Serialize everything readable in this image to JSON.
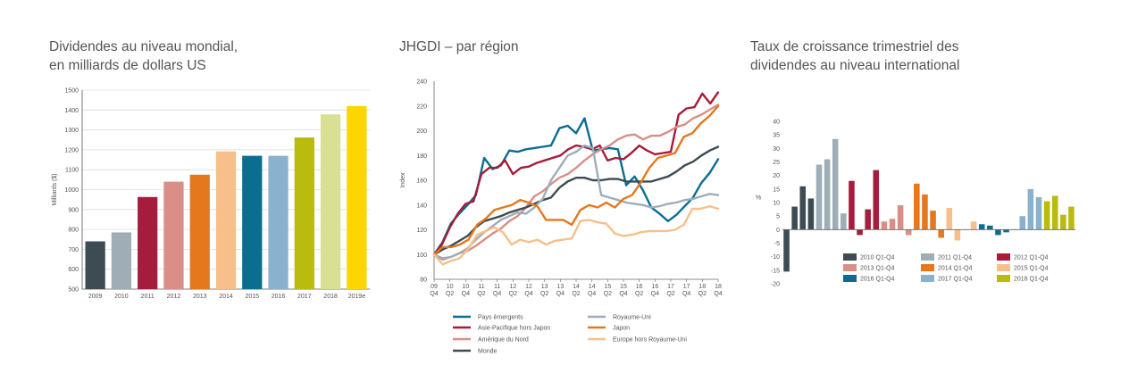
{
  "chart_data": [
    {
      "type": "bar",
      "title_line1": "Dividendes au niveau mondial,",
      "title_line2": "en milliards de dollars US",
      "ylabel": "Milliards ($)",
      "ylim": [
        500,
        1500
      ],
      "yticks": [
        500,
        600,
        700,
        800,
        900,
        1000,
        1100,
        1200,
        1300,
        1400,
        1500
      ],
      "categories": [
        "2009",
        "2010",
        "2011",
        "2012",
        "2013",
        "2014",
        "2015",
        "2016",
        "2017",
        "2018",
        "2019e"
      ],
      "values": [
        740,
        785,
        963,
        1040,
        1075,
        1192,
        1170,
        1170,
        1262,
        1378,
        1420
      ],
      "colors": [
        "#3d4b52",
        "#9fadb6",
        "#a61c3c",
        "#d98e86",
        "#e5781d",
        "#f7bf8a",
        "#0a6e91",
        "#8ab2cf",
        "#b9bb0f",
        "#d9df93",
        "#fdd500"
      ],
      "grid": true
    },
    {
      "type": "line",
      "title": "JHGDI – par région",
      "ylabel": "Index",
      "ylim": [
        80,
        240
      ],
      "yticks": [
        80,
        100,
        120,
        140,
        160,
        180,
        200,
        220,
        240
      ],
      "x_labels_top": [
        "09",
        "10",
        "10",
        "11",
        "11",
        "12",
        "12",
        "13",
        "13",
        "14",
        "14",
        "15",
        "15",
        "16",
        "16",
        "17",
        "17",
        "18",
        "18"
      ],
      "x_labels_bottom": [
        "Q4",
        "Q2",
        "Q4",
        "Q2",
        "Q4",
        "Q2",
        "Q4",
        "Q2",
        "Q4",
        "Q2",
        "Q4",
        "Q2",
        "Q4",
        "Q2",
        "Q4",
        "Q2",
        "Q4",
        "Q2",
        "Q4"
      ],
      "grid": false,
      "legend_position": "bottom",
      "series": [
        {
          "name": "Pays émergents",
          "color": "#0a6e91",
          "values": [
            100,
            110,
            125,
            133,
            140,
            148,
            178,
            169,
            172,
            184,
            183,
            185,
            186,
            187,
            188,
            202,
            204,
            198,
            210,
            184,
            185,
            186,
            185,
            156,
            163,
            152,
            138,
            133,
            127,
            132,
            139,
            146,
            158,
            166,
            177
          ]
        },
        {
          "name": "Asie-Pacifique hors Japon",
          "color": "#a61c3c",
          "values": [
            100,
            108,
            122,
            133,
            141,
            143,
            165,
            170,
            170,
            176,
            165,
            170,
            171,
            174,
            176,
            178,
            180,
            185,
            188,
            187,
            185,
            188,
            176,
            178,
            177,
            182,
            188,
            184,
            181,
            182,
            183,
            213,
            218,
            219,
            230,
            222,
            231
          ]
        },
        {
          "name": "Amérique du Nord",
          "color": "#d98e86",
          "values": [
            100,
            96,
            98,
            101,
            103,
            107,
            112,
            117,
            121,
            127,
            131,
            138,
            147,
            151,
            157,
            162,
            165,
            170,
            176,
            181,
            185,
            188,
            193,
            196,
            197,
            193,
            196,
            196,
            199,
            203,
            205,
            210,
            213,
            217,
            221
          ]
        },
        {
          "name": "Monde",
          "color": "#3d4b52",
          "values": [
            100,
            104,
            107,
            111,
            115,
            122,
            127,
            129,
            131,
            134,
            136,
            138,
            141,
            144,
            146,
            154,
            159,
            162,
            162,
            160,
            160,
            161,
            161,
            159,
            159,
            159,
            159,
            161,
            163,
            167,
            172,
            175,
            180,
            184,
            187
          ]
        },
        {
          "name": "Royaume-Uni",
          "color": "#9fadb6",
          "values": [
            100,
            97,
            98,
            101,
            105,
            112,
            118,
            123,
            128,
            131,
            134,
            133,
            138,
            145,
            160,
            170,
            180,
            183,
            188,
            186,
            148,
            146,
            144,
            142,
            141,
            140,
            138,
            139,
            141,
            142,
            144,
            145,
            147,
            149,
            148
          ]
        },
        {
          "name": "Japon",
          "color": "#e5781d",
          "values": [
            100,
            106,
            106,
            108,
            112,
            124,
            129,
            136,
            138,
            140,
            144,
            142,
            139,
            128,
            128,
            128,
            124,
            136,
            140,
            138,
            142,
            138,
            145,
            148,
            158,
            170,
            178,
            180,
            182,
            195,
            198,
            206,
            212,
            220
          ]
        },
        {
          "name": "Europe hors Royaume-Uni",
          "color": "#f7bf8a",
          "values": [
            100,
            92,
            95,
            97,
            105,
            116,
            119,
            122,
            118,
            108,
            112,
            110,
            112,
            108,
            111,
            112,
            113,
            127,
            128,
            126,
            125,
            117,
            115,
            116,
            118,
            119,
            119,
            119,
            120,
            124,
            137,
            137,
            139,
            137
          ]
        }
      ]
    },
    {
      "type": "bar",
      "title_line1": "Taux de croissance trimestriel des",
      "title_line2": "dividendes au niveau international",
      "ylabel": "%",
      "ylim": [
        -20,
        40
      ],
      "yticks": [
        40,
        35,
        30,
        25,
        20,
        15,
        10,
        5,
        0,
        -5,
        -10,
        -15,
        -20
      ],
      "series": [
        {
          "name": "2010 Q1-Q4",
          "color": "#3d4b52",
          "values": [
            -15.5,
            8.5,
            16,
            11.5
          ]
        },
        {
          "name": "2011 Q1-Q4",
          "color": "#9fadb6",
          "values": [
            24,
            26,
            33.5,
            6
          ]
        },
        {
          "name": "2012 Q1-Q4",
          "color": "#a61c3c",
          "values": [
            18,
            -2,
            7.5,
            22
          ]
        },
        {
          "name": "2013 Q1-Q4",
          "color": "#d98e86",
          "values": [
            3,
            4,
            9,
            -2
          ]
        },
        {
          "name": "2014 Q1-Q4",
          "color": "#e5781d",
          "values": [
            17,
            13,
            7,
            -3
          ]
        },
        {
          "name": "2015 Q1-Q4",
          "color": "#f7bf8a",
          "values": [
            8,
            -4,
            0,
            3
          ]
        },
        {
          "name": "2016 Q1-Q4",
          "color": "#0a6e91",
          "values": [
            2,
            1.5,
            -2,
            -1
          ]
        },
        {
          "name": "2017 Q1-Q4",
          "color": "#8ab2cf",
          "values": [
            0,
            5,
            15,
            12
          ]
        },
        {
          "name": "2018 Q1-Q4",
          "color": "#b9bb0f",
          "values": [
            10.5,
            12.5,
            5.5,
            8.5
          ]
        }
      ],
      "legend_position": "bottom",
      "grid": false
    }
  ]
}
